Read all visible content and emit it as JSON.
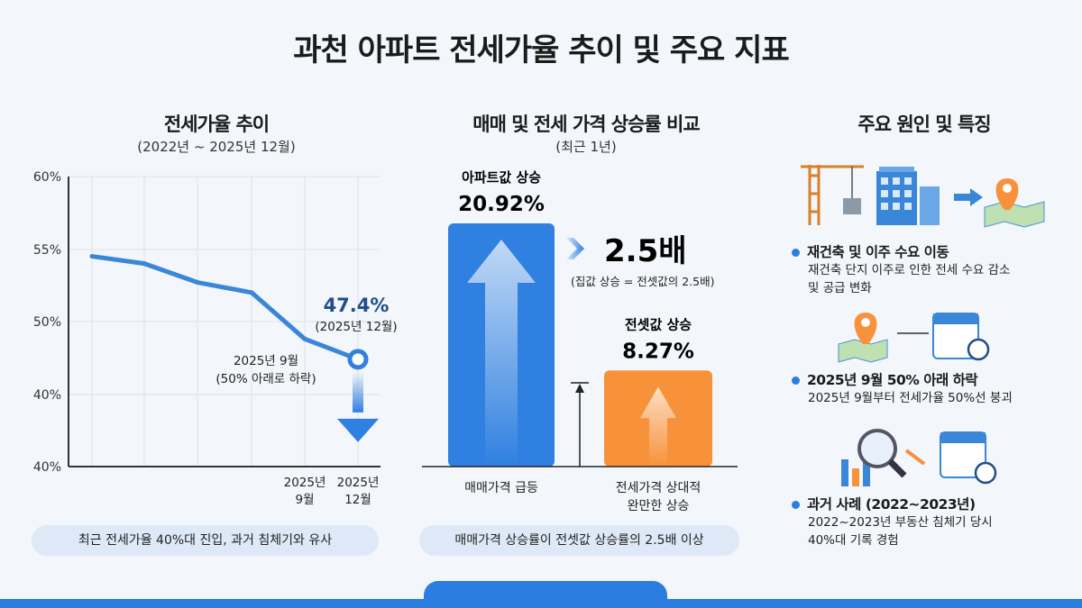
{
  "title": "과천 아파트 전세가율 추이 및 주요 지표",
  "left": {
    "title": "전세가율 추이",
    "subtitle": "(2022년 ~ 2025년 12월)",
    "footer": "최근 전세가율 40%대 진입, 과거 침체기와 유사"
  },
  "middle": {
    "title": "매매 및 전세 가격 상승률 비교",
    "subtitle": "(최근 1년)",
    "ratio": "2.5배",
    "ratio_note": "(집값 상승 = 전셋값의 2.5배)",
    "footer": "매매가격 상승률이 전셋값 상승률의 2.5배 이상"
  },
  "right": {
    "title": "주요 원인 및 특징",
    "items": [
      {
        "heading": "재건축 및 이주 수요 이동",
        "lines": [
          "재건축 단지 이주로 인한 전세 수요 감소",
          "및 공급 변화"
        ]
      },
      {
        "heading": "2025년 9월 50% 아래 하락",
        "lines": [
          "2025년 9월부터 전세가율 50%선 붕괴"
        ]
      },
      {
        "heading": "과거 사례 (2022~2023년)",
        "lines": [
          "2022~2023년 부동산 침체기 당시",
          "40%대 기록 경험"
        ]
      }
    ]
  },
  "chart_data": [
    {
      "type": "line",
      "y_tick_labels": [
        "60%",
        "55%",
        "50%",
        "40%",
        "40%"
      ],
      "x_tick_labels": [
        "",
        "",
        "",
        "",
        "2025년\n9월",
        "2025년\n12월"
      ],
      "values": [
        54.5,
        54.0,
        52.7,
        52.0,
        48.8,
        47.4
      ],
      "ylim": [
        45,
        60
      ],
      "grid": true,
      "color": "#3a86d8",
      "annotations": [
        {
          "label": "47.4%",
          "sub": "(2025년 12월)"
        },
        {
          "label": "2025년 9월",
          "sub": "(50% 아래로 하락)"
        }
      ]
    },
    {
      "type": "bar",
      "categories": [
        "매매가격 급등",
        "전세가격 상대적\n완만한 상승"
      ],
      "series_labels": [
        "아파트값 상승",
        "전셋값 상승"
      ],
      "values": [
        20.92,
        8.27
      ],
      "value_labels": [
        "20.92%",
        "8.27%"
      ],
      "colors": [
        "#2f80e0",
        "#f7923a"
      ]
    }
  ]
}
